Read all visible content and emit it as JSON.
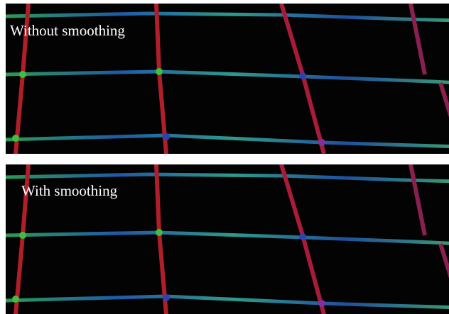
{
  "panels": [
    {
      "label": "Without smoothing"
    },
    {
      "label": "With smoothing"
    }
  ]
}
